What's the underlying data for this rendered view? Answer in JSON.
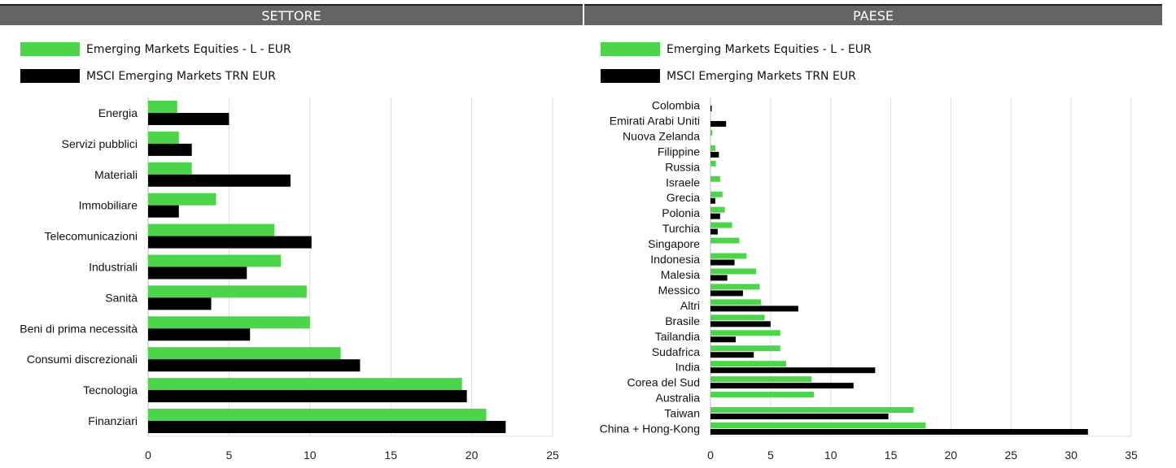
{
  "headers": {
    "left": "SETTORE",
    "right": "PAESE"
  },
  "colors": {
    "fund": "#4cd44a",
    "index": "#000000",
    "grid": "#dddddd",
    "axis": "#bbbbbb"
  },
  "legend": [
    {
      "label": "Emerging Markets Equities - L - EUR",
      "color": "#4cd44a"
    },
    {
      "label": "MSCI Emerging Markets TRN EUR",
      "color": "#000000"
    }
  ],
  "chart_data": [
    {
      "type": "bar",
      "orientation": "horizontal",
      "title": "SETTORE",
      "categories": [
        "Energia",
        "Servizi pubblici",
        "Materiali",
        "Immobiliare",
        "Telecomunicazioni",
        "Industriali",
        "Sanità",
        "Beni di prima necessità",
        "Consumi discrezionali",
        "Tecnologia",
        "Finanziari"
      ],
      "series": [
        {
          "name": "Emerging Markets Equities - L - EUR",
          "values": [
            1.8,
            1.9,
            2.7,
            4.2,
            7.8,
            8.2,
            9.8,
            10.0,
            11.9,
            19.4,
            20.9
          ]
        },
        {
          "name": "MSCI Emerging Markets TRN EUR",
          "values": [
            5.0,
            2.7,
            8.8,
            1.9,
            10.1,
            6.1,
            3.9,
            6.3,
            13.1,
            19.7,
            22.1
          ]
        }
      ],
      "xlim": [
        0,
        25
      ],
      "xticks": [
        0,
        5,
        10,
        15,
        20,
        25
      ],
      "grid": true,
      "legend_position": "top-left"
    },
    {
      "type": "bar",
      "orientation": "horizontal",
      "title": "PAESE",
      "categories": [
        "Colombia",
        "Emirati Arabi Uniti",
        "Nuova Zelanda",
        "Filippine",
        "Russia",
        "Israele",
        "Grecia",
        "Polonia",
        "Turchia",
        "Singapore",
        "Indonesia",
        "Malesia",
        "Messico",
        "Altri",
        "Brasile",
        "Tailandia",
        "Sudafrica",
        "India",
        "Corea del Sud",
        "Australia",
        "Taiwan",
        "China + Hong-Kong"
      ],
      "series": [
        {
          "name": "Emerging Markets Equities - L - EUR",
          "values": [
            0.0,
            0.0,
            0.15,
            0.4,
            0.45,
            0.8,
            1.0,
            1.2,
            1.8,
            2.4,
            3.0,
            3.8,
            4.1,
            4.2,
            4.5,
            5.8,
            5.8,
            6.3,
            8.4,
            8.6,
            16.9,
            17.9
          ]
        },
        {
          "name": "MSCI Emerging Markets TRN EUR",
          "values": [
            0.1,
            1.3,
            0.0,
            0.7,
            0.0,
            0.0,
            0.4,
            0.8,
            0.6,
            0.0,
            2.0,
            1.4,
            2.7,
            7.3,
            5.0,
            2.1,
            3.6,
            13.7,
            11.9,
            0.0,
            14.8,
            31.4
          ]
        }
      ],
      "xlim": [
        0,
        35
      ],
      "xticks": [
        0,
        5,
        10,
        15,
        20,
        25,
        30,
        35
      ],
      "grid": true,
      "legend_position": "top-left"
    }
  ]
}
